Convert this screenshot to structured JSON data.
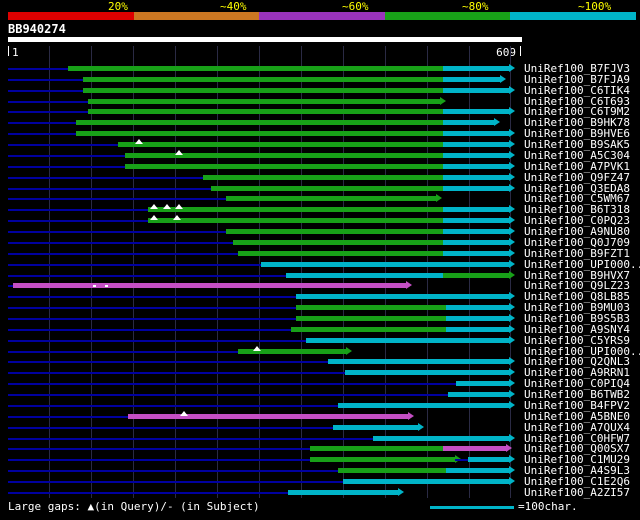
{
  "header": {
    "scale_labels": [
      "20%",
      "~40%",
      "~60%",
      "~80%",
      "~100%"
    ],
    "scale_colors": [
      "#dd0000",
      "#cc7722",
      "#9933bb",
      "#18a018",
      "#00b4c8"
    ],
    "label_color": "#ffff00"
  },
  "query": {
    "id": "BB940274",
    "start": "1",
    "end": "609",
    "length": 609
  },
  "footer": {
    "gaps_note": "Large gaps: ▲(in Query)/- (in Subject)",
    "ruler_note": "=100char.",
    "ruler_chars": 100
  },
  "chart_data": {
    "type": "bar",
    "orientation": "horizontal",
    "title": "BB940274 similarity search graphical overview",
    "x_range": [
      1,
      609
    ],
    "gridline_step": 50,
    "palette": {
      "green": "#18a018",
      "cyan": "#00b4c8",
      "magenta": "#c44fc4",
      "navy": "#0000a0",
      "grid": "#2a2a44",
      "white": "#ffffff"
    },
    "rows": [
      {
        "label": "UniRef100_B7FJV3",
        "segs": [
          {
            "c": "green",
            "s": 72,
            "e": 520
          },
          {
            "c": "cyan",
            "s": 520,
            "e": 598,
            "arrow": true
          }
        ]
      },
      {
        "label": "UniRef100_B7FJA9",
        "segs": [
          {
            "c": "green",
            "s": 90,
            "e": 520
          },
          {
            "c": "cyan",
            "s": 520,
            "e": 588,
            "arrow": true
          }
        ]
      },
      {
        "label": "UniRef100_C6TIK4",
        "segs": [
          {
            "c": "green",
            "s": 90,
            "e": 520
          },
          {
            "c": "cyan",
            "s": 520,
            "e": 598,
            "arrow": true
          }
        ]
      },
      {
        "label": "UniRef100_C6T693",
        "segs": [
          {
            "c": "green",
            "s": 96,
            "e": 516,
            "arrow": true
          }
        ]
      },
      {
        "label": "UniRef100_C6T9M2",
        "segs": [
          {
            "c": "green",
            "s": 96,
            "e": 520
          },
          {
            "c": "cyan",
            "s": 520,
            "e": 598,
            "arrow": true
          }
        ]
      },
      {
        "label": "UniRef100_B9HK78",
        "segs": [
          {
            "c": "green",
            "s": 82,
            "e": 520
          },
          {
            "c": "cyan",
            "s": 520,
            "e": 580,
            "arrow": true
          }
        ]
      },
      {
        "label": "UniRef100_B9HVE6",
        "segs": [
          {
            "c": "green",
            "s": 82,
            "e": 520
          },
          {
            "c": "cyan",
            "s": 520,
            "e": 598,
            "arrow": true
          }
        ]
      },
      {
        "label": "UniRef100_B9SAK5",
        "tri": [
          156
        ],
        "segs": [
          {
            "c": "green",
            "s": 132,
            "e": 520
          },
          {
            "c": "cyan",
            "s": 520,
            "e": 598,
            "arrow": true
          }
        ]
      },
      {
        "label": "UniRef100_A5C304",
        "tri": [
          204
        ],
        "segs": [
          {
            "c": "green",
            "s": 141,
            "e": 520
          },
          {
            "c": "cyan",
            "s": 520,
            "e": 598,
            "arrow": true
          }
        ]
      },
      {
        "label": "UniRef100_A7PVK1",
        "segs": [
          {
            "c": "green",
            "s": 141,
            "e": 520
          },
          {
            "c": "cyan",
            "s": 520,
            "e": 598,
            "arrow": true
          }
        ]
      },
      {
        "label": "UniRef100_Q9FZ47",
        "segs": [
          {
            "c": "green",
            "s": 233,
            "e": 520
          },
          {
            "c": "cyan",
            "s": 520,
            "e": 598,
            "arrow": true
          }
        ]
      },
      {
        "label": "UniRef100_Q3EDA8",
        "segs": [
          {
            "c": "green",
            "s": 243,
            "e": 520
          },
          {
            "c": "cyan",
            "s": 520,
            "e": 598,
            "arrow": true
          }
        ]
      },
      {
        "label": "UniRef100_C5WM67",
        "segs": [
          {
            "c": "green",
            "s": 261,
            "e": 511,
            "arrow": true
          }
        ]
      },
      {
        "label": "UniRef100_B6T318",
        "tri": [
          174,
          189,
          204
        ],
        "segs": [
          {
            "c": "green",
            "s": 168,
            "e": 520
          },
          {
            "c": "cyan",
            "s": 520,
            "e": 598,
            "arrow": true
          }
        ]
      },
      {
        "label": "UniRef100_C0PQ23",
        "tri": [
          174,
          201
        ],
        "segs": [
          {
            "c": "green",
            "s": 168,
            "e": 520
          },
          {
            "c": "cyan",
            "s": 520,
            "e": 598,
            "arrow": true
          }
        ]
      },
      {
        "label": "UniRef100_A9NU80",
        "segs": [
          {
            "c": "green",
            "s": 261,
            "e": 520
          },
          {
            "c": "cyan",
            "s": 520,
            "e": 598,
            "arrow": true
          }
        ]
      },
      {
        "label": "UniRef100_Q0J709",
        "segs": [
          {
            "c": "green",
            "s": 269,
            "e": 520
          },
          {
            "c": "cyan",
            "s": 520,
            "e": 598,
            "arrow": true
          }
        ]
      },
      {
        "label": "UniRef100_B9FZT1",
        "segs": [
          {
            "c": "green",
            "s": 275,
            "e": 520
          },
          {
            "c": "cyan",
            "s": 520,
            "e": 598,
            "arrow": true
          }
        ]
      },
      {
        "label": "UniRef100_UPI000...",
        "segs": [
          {
            "c": "cyan",
            "s": 303,
            "e": 598,
            "arrow": true
          }
        ]
      },
      {
        "label": "UniRef100_B9HVX7",
        "segs": [
          {
            "c": "cyan",
            "s": 332,
            "e": 520
          },
          {
            "c": "green",
            "s": 520,
            "e": 598,
            "arrow": true
          }
        ]
      },
      {
        "label": "UniRef100_Q9LZ23",
        "dots": [
          102,
          117
        ],
        "segs": [
          {
            "c": "magenta",
            "s": 7,
            "e": 476,
            "arrow": true
          }
        ]
      },
      {
        "label": "UniRef100_Q8LB85",
        "segs": [
          {
            "c": "cyan",
            "s": 344,
            "e": 598,
            "arrow": true
          }
        ]
      },
      {
        "label": "UniRef100_B9MU03",
        "segs": [
          {
            "c": "green",
            "s": 344,
            "e": 523
          },
          {
            "c": "cyan",
            "s": 523,
            "e": 598,
            "arrow": true
          }
        ]
      },
      {
        "label": "UniRef100_B9S5B3",
        "segs": [
          {
            "c": "green",
            "s": 344,
            "e": 523
          },
          {
            "c": "cyan",
            "s": 523,
            "e": 598,
            "arrow": true
          }
        ]
      },
      {
        "label": "UniRef100_A9SNY4",
        "segs": [
          {
            "c": "green",
            "s": 338,
            "e": 523
          },
          {
            "c": "cyan",
            "s": 523,
            "e": 598,
            "arrow": true
          }
        ]
      },
      {
        "label": "UniRef100_C5YRS9",
        "segs": [
          {
            "c": "cyan",
            "s": 356,
            "e": 598,
            "arrow": true
          }
        ]
      },
      {
        "label": "UniRef100_UPI000...",
        "tri": [
          297
        ],
        "segs": [
          {
            "c": "green",
            "s": 275,
            "e": 404,
            "arrow": true
          }
        ]
      },
      {
        "label": "UniRef100_Q2QNL3",
        "segs": [
          {
            "c": "cyan",
            "s": 382,
            "e": 598,
            "arrow": true
          }
        ]
      },
      {
        "label": "UniRef100_A9RRN1",
        "segs": [
          {
            "c": "cyan",
            "s": 403,
            "e": 598,
            "arrow": true
          }
        ]
      },
      {
        "label": "UniRef100_C0PIQ4",
        "segs": [
          {
            "c": "cyan",
            "s": 535,
            "e": 598,
            "arrow": true
          }
        ]
      },
      {
        "label": "UniRef100_B6TWB2",
        "segs": [
          {
            "c": "cyan",
            "s": 525,
            "e": 598,
            "arrow": true
          }
        ]
      },
      {
        "label": "UniRef100_B4FPV2",
        "segs": [
          {
            "c": "cyan",
            "s": 394,
            "e": 598,
            "arrow": true
          }
        ]
      },
      {
        "label": "UniRef100_A5BNE0",
        "tri": [
          210
        ],
        "segs": [
          {
            "c": "magenta",
            "s": 144,
            "e": 478,
            "arrow": true
          }
        ]
      },
      {
        "label": "UniRef100_A7QUX4",
        "segs": [
          {
            "c": "cyan",
            "s": 388,
            "e": 490,
            "arrow": true
          }
        ]
      },
      {
        "label": "UniRef100_C0HFW7",
        "segs": [
          {
            "c": "cyan",
            "s": 436,
            "e": 598,
            "arrow": true
          }
        ]
      },
      {
        "label": "UniRef100_Q00SX7",
        "segs": [
          {
            "c": "green",
            "s": 361,
            "e": 520
          },
          {
            "c": "magenta",
            "s": 520,
            "e": 595,
            "arrow": true
          }
        ]
      },
      {
        "label": "UniRef100_C1MU29",
        "segs": [
          {
            "c": "green",
            "s": 361,
            "e": 534,
            "arrow": true
          },
          {
            "c": "cyan",
            "s": 549,
            "e": 598,
            "arrow": true
          }
        ]
      },
      {
        "label": "UniRef100_A4S9L3",
        "segs": [
          {
            "c": "green",
            "s": 394,
            "e": 523
          },
          {
            "c": "cyan",
            "s": 523,
            "e": 598,
            "arrow": true
          }
        ]
      },
      {
        "label": "UniRef100_C1E2Q6",
        "segs": [
          {
            "c": "cyan",
            "s": 400,
            "e": 598,
            "arrow": true
          }
        ]
      },
      {
        "label": "UniRef100_A2ZI57",
        "segs": [
          {
            "c": "cyan",
            "s": 335,
            "e": 466,
            "arrow": true
          }
        ]
      }
    ]
  }
}
